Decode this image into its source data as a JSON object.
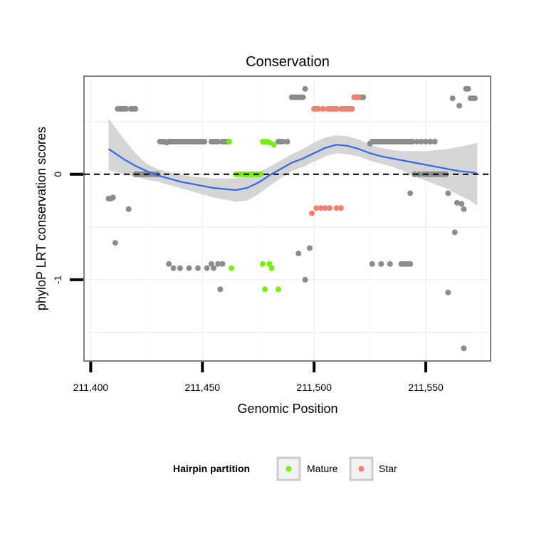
{
  "chart_data": {
    "type": "scatter",
    "title": "Conservation",
    "xlabel": "Genomic Position",
    "ylabel": "phyloP LRT conservation scores",
    "xlim": [
      211397,
      211579
    ],
    "ylim": [
      -1.77,
      0.93
    ],
    "x_ticks": [
      211400,
      211450,
      211500,
      211550
    ],
    "x_tick_labels": [
      "211,400",
      "211,450",
      "211,500",
      "211,550"
    ],
    "y_ticks": [
      0,
      -1
    ],
    "y_tick_labels": [
      "0",
      "-1"
    ],
    "reference_line": {
      "y": 0,
      "style": "dashed"
    },
    "legend": {
      "title": "Hairpin partition",
      "position": "bottom",
      "entries": [
        {
          "label": "Mature",
          "color": "#77ee11"
        },
        {
          "label": "Star",
          "color": "#f08070"
        }
      ]
    },
    "colors": {
      "other": "#8c8c8c",
      "Mature": "#77ee11",
      "Star": "#f08070",
      "smooth_line": "#3366ee",
      "ribbon": "#d0d0d0"
    },
    "series": [
      {
        "name": "Other",
        "points": [
          [
            211408,
            -0.23
          ],
          [
            211409,
            -0.23
          ],
          [
            211410,
            -0.22
          ],
          [
            211411,
            -0.65
          ],
          [
            211417,
            -0.33
          ],
          [
            211412,
            0.62
          ],
          [
            211413,
            0.62
          ],
          [
            211414,
            0.62
          ],
          [
            211415,
            0.62
          ],
          [
            211416,
            0.62
          ],
          [
            211418,
            0.62
          ],
          [
            211419,
            0.62
          ],
          [
            211420,
            0.62
          ],
          [
            211420,
            0
          ],
          [
            211421,
            0
          ],
          [
            211422,
            0
          ],
          [
            211423,
            0
          ],
          [
            211424,
            0
          ],
          [
            211425,
            0
          ],
          [
            211426,
            0
          ],
          [
            211427,
            0
          ],
          [
            211428,
            0
          ],
          [
            211429,
            0
          ],
          [
            211430,
            0
          ],
          [
            211431,
            0.31
          ],
          [
            211432,
            0.31
          ],
          [
            211433,
            0.31
          ],
          [
            211434,
            0.3
          ],
          [
            211435,
            0.31
          ],
          [
            211436,
            0.31
          ],
          [
            211437,
            0.31
          ],
          [
            211438,
            0.31
          ],
          [
            211439,
            0.31
          ],
          [
            211440,
            0.31
          ],
          [
            211441,
            0.31
          ],
          [
            211442,
            0.31
          ],
          [
            211443,
            0.31
          ],
          [
            211444,
            0.31
          ],
          [
            211445,
            0.31
          ],
          [
            211446,
            0.31
          ],
          [
            211447,
            0.31
          ],
          [
            211448,
            0.31
          ],
          [
            211449,
            0.31
          ],
          [
            211450,
            0.31
          ],
          [
            211451,
            0.31
          ],
          [
            211454,
            0.31
          ],
          [
            211455,
            0.31
          ],
          [
            211456,
            0.31
          ],
          [
            211457,
            0.31
          ],
          [
            211459,
            0.31
          ],
          [
            211460,
            0.31
          ],
          [
            211461,
            0.31
          ],
          [
            211435,
            -0.85
          ],
          [
            211437,
            -0.89
          ],
          [
            211440,
            -0.89
          ],
          [
            211444,
            -0.89
          ],
          [
            211448,
            -0.89
          ],
          [
            211452,
            -0.89
          ],
          [
            211454,
            -0.85
          ],
          [
            211455,
            -0.89
          ],
          [
            211457,
            -0.85
          ],
          [
            211459,
            -0.85
          ],
          [
            211458,
            -1.09
          ],
          [
            211482,
            0.28
          ],
          [
            211484,
            0.31
          ],
          [
            211485,
            0.31
          ],
          [
            211486,
            0.31
          ],
          [
            211488,
            0.31
          ],
          [
            211490,
            0.73
          ],
          [
            211491,
            0.73
          ],
          [
            211492,
            0.73
          ],
          [
            211493,
            0.73
          ],
          [
            211494,
            0.73
          ],
          [
            211495,
            0.73
          ],
          [
            211496,
            0.81
          ],
          [
            211493,
            -0.75
          ],
          [
            211496,
            -1.0
          ],
          [
            211498,
            -0.7
          ],
          [
            211518,
            0.73
          ],
          [
            211519,
            0.73
          ],
          [
            211520,
            0.73
          ],
          [
            211521,
            0.73
          ],
          [
            211522,
            0.73
          ],
          [
            211525,
            0.29
          ],
          [
            211526,
            0.31
          ],
          [
            211527,
            0.31
          ],
          [
            211528,
            0.31
          ],
          [
            211529,
            0.31
          ],
          [
            211530,
            0.31
          ],
          [
            211531,
            0.31
          ],
          [
            211532,
            0.31
          ],
          [
            211533,
            0.31
          ],
          [
            211534,
            0.31
          ],
          [
            211535,
            0.31
          ],
          [
            211536,
            0.31
          ],
          [
            211537,
            0.31
          ],
          [
            211538,
            0.31
          ],
          [
            211539,
            0.31
          ],
          [
            211540,
            0.31
          ],
          [
            211541,
            0.31
          ],
          [
            211542,
            0.31
          ],
          [
            211543,
            0.31
          ],
          [
            211544,
            0.31
          ],
          [
            211546,
            0.31
          ],
          [
            211548,
            0.31
          ],
          [
            211550,
            0.31
          ],
          [
            211552,
            0.31
          ],
          [
            211554,
            0.31
          ],
          [
            211545,
            0
          ],
          [
            211547,
            0
          ],
          [
            211549,
            0
          ],
          [
            211550,
            0
          ],
          [
            211551,
            0
          ],
          [
            211552,
            0
          ],
          [
            211553,
            0
          ],
          [
            211554,
            0
          ],
          [
            211555,
            0
          ],
          [
            211556,
            0
          ],
          [
            211557,
            0
          ],
          [
            211558,
            0
          ],
          [
            211559,
            0
          ],
          [
            211543,
            -0.18
          ],
          [
            211560,
            -0.18
          ],
          [
            211526,
            -0.85
          ],
          [
            211530,
            -0.85
          ],
          [
            211534,
            -0.85
          ],
          [
            211539,
            -0.85
          ],
          [
            211540,
            -0.85
          ],
          [
            211541,
            -0.85
          ],
          [
            211542,
            -0.85
          ],
          [
            211543,
            -0.85
          ],
          [
            211560,
            -1.12
          ],
          [
            211563,
            -0.55
          ],
          [
            211564,
            -0.27
          ],
          [
            211566,
            -0.28
          ],
          [
            211567,
            -0.33
          ],
          [
            211567,
            -1.65
          ],
          [
            211562,
            0.72
          ],
          [
            211565,
            0.65
          ],
          [
            211568,
            0.81
          ],
          [
            211569,
            0.81
          ],
          [
            211570,
            0.72
          ],
          [
            211571,
            0.72
          ],
          [
            211572,
            0.72
          ]
        ]
      },
      {
        "name": "Mature",
        "points": [
          [
            211462,
            0.31
          ],
          [
            211463,
            -0.89
          ],
          [
            211465,
            0
          ],
          [
            211466,
            0
          ],
          [
            211467,
            0
          ],
          [
            211468,
            0
          ],
          [
            211469,
            0
          ],
          [
            211470,
            0
          ],
          [
            211471,
            0
          ],
          [
            211472,
            0
          ],
          [
            211473,
            0
          ],
          [
            211474,
            0
          ],
          [
            211475,
            0
          ],
          [
            211476,
            0
          ],
          [
            211477,
            0.31
          ],
          [
            211478,
            0.31
          ],
          [
            211479,
            0.31
          ],
          [
            211480,
            0.3
          ],
          [
            211482,
            0.28
          ],
          [
            211477,
            -0.85
          ],
          [
            211480,
            -0.85
          ],
          [
            211481,
            -0.89
          ],
          [
            211478,
            -1.09
          ],
          [
            211484,
            -1.09
          ]
        ]
      },
      {
        "name": "Star",
        "points": [
          [
            211500,
            0.62
          ],
          [
            211501,
            0.62
          ],
          [
            211502,
            0.62
          ],
          [
            211504,
            0.62
          ],
          [
            211506,
            0.62
          ],
          [
            211507,
            0.62
          ],
          [
            211508,
            0.62
          ],
          [
            211509,
            0.62
          ],
          [
            211510,
            0.62
          ],
          [
            211512,
            0.62
          ],
          [
            211513,
            0.62
          ],
          [
            211514,
            0.62
          ],
          [
            211515,
            0.62
          ],
          [
            211516,
            0.62
          ],
          [
            211517,
            0.62
          ],
          [
            211518,
            0.73
          ],
          [
            211519,
            0.73
          ],
          [
            211520,
            0.73
          ],
          [
            211499,
            -0.37
          ],
          [
            211501,
            -0.32
          ],
          [
            211503,
            -0.32
          ],
          [
            211505,
            -0.32
          ],
          [
            211507,
            -0.32
          ],
          [
            211510,
            -0.32
          ],
          [
            211512,
            -0.32
          ]
        ]
      }
    ],
    "smooth": {
      "method": "loess",
      "points": [
        [
          211408,
          0.24
        ],
        [
          211415,
          0.14
        ],
        [
          211420,
          0.08
        ],
        [
          211425,
          0.03
        ],
        [
          211430,
          -0.01
        ],
        [
          211435,
          -0.04
        ],
        [
          211440,
          -0.07
        ],
        [
          211445,
          -0.09
        ],
        [
          211450,
          -0.11
        ],
        [
          211455,
          -0.13
        ],
        [
          211460,
          -0.14
        ],
        [
          211465,
          -0.15
        ],
        [
          211470,
          -0.13
        ],
        [
          211475,
          -0.08
        ],
        [
          211480,
          -0.01
        ],
        [
          211485,
          0.05
        ],
        [
          211490,
          0.11
        ],
        [
          211495,
          0.15
        ],
        [
          211500,
          0.2
        ],
        [
          211505,
          0.25
        ],
        [
          211510,
          0.28
        ],
        [
          211515,
          0.27
        ],
        [
          211520,
          0.24
        ],
        [
          211525,
          0.2
        ],
        [
          211530,
          0.17
        ],
        [
          211535,
          0.15
        ],
        [
          211540,
          0.13
        ],
        [
          211545,
          0.11
        ],
        [
          211550,
          0.09
        ],
        [
          211555,
          0.07
        ],
        [
          211560,
          0.05
        ],
        [
          211565,
          0.03
        ],
        [
          211570,
          0.02
        ],
        [
          211573,
          0.01
        ]
      ],
      "ribbon_lower": [
        [
          211408,
          0.04
        ],
        [
          211415,
          0.0
        ],
        [
          211420,
          -0.02
        ],
        [
          211425,
          -0.05
        ],
        [
          211430,
          -0.07
        ],
        [
          211435,
          -0.1
        ],
        [
          211440,
          -0.13
        ],
        [
          211445,
          -0.16
        ],
        [
          211450,
          -0.19
        ],
        [
          211455,
          -0.22
        ],
        [
          211460,
          -0.24
        ],
        [
          211465,
          -0.26
        ],
        [
          211470,
          -0.25
        ],
        [
          211475,
          -0.19
        ],
        [
          211480,
          -0.11
        ],
        [
          211485,
          -0.04
        ],
        [
          211490,
          0.03
        ],
        [
          211495,
          0.07
        ],
        [
          211500,
          0.12
        ],
        [
          211505,
          0.17
        ],
        [
          211510,
          0.2
        ],
        [
          211515,
          0.19
        ],
        [
          211520,
          0.17
        ],
        [
          211525,
          0.13
        ],
        [
          211530,
          0.1
        ],
        [
          211535,
          0.07
        ],
        [
          211540,
          0.03
        ],
        [
          211545,
          -0.02
        ],
        [
          211550,
          -0.06
        ],
        [
          211555,
          -0.1
        ],
        [
          211560,
          -0.14
        ],
        [
          211565,
          -0.2
        ],
        [
          211570,
          -0.25
        ],
        [
          211573,
          -0.3
        ]
      ],
      "ribbon_upper": [
        [
          211408,
          0.53
        ],
        [
          211415,
          0.33
        ],
        [
          211420,
          0.2
        ],
        [
          211425,
          0.1
        ],
        [
          211430,
          0.05
        ],
        [
          211435,
          0.02
        ],
        [
          211440,
          0.0
        ],
        [
          211445,
          -0.02
        ],
        [
          211450,
          -0.03
        ],
        [
          211455,
          -0.04
        ],
        [
          211460,
          -0.04
        ],
        [
          211465,
          -0.04
        ],
        [
          211470,
          -0.02
        ],
        [
          211475,
          0.02
        ],
        [
          211480,
          0.07
        ],
        [
          211485,
          0.13
        ],
        [
          211490,
          0.19
        ],
        [
          211495,
          0.24
        ],
        [
          211500,
          0.3
        ],
        [
          211505,
          0.35
        ],
        [
          211510,
          0.37
        ],
        [
          211515,
          0.36
        ],
        [
          211520,
          0.33
        ],
        [
          211525,
          0.28
        ],
        [
          211530,
          0.25
        ],
        [
          211535,
          0.23
        ],
        [
          211540,
          0.22
        ],
        [
          211545,
          0.22
        ],
        [
          211550,
          0.22
        ],
        [
          211555,
          0.23
        ],
        [
          211560,
          0.24
        ],
        [
          211565,
          0.26
        ],
        [
          211570,
          0.28
        ],
        [
          211573,
          0.3
        ]
      ]
    }
  }
}
